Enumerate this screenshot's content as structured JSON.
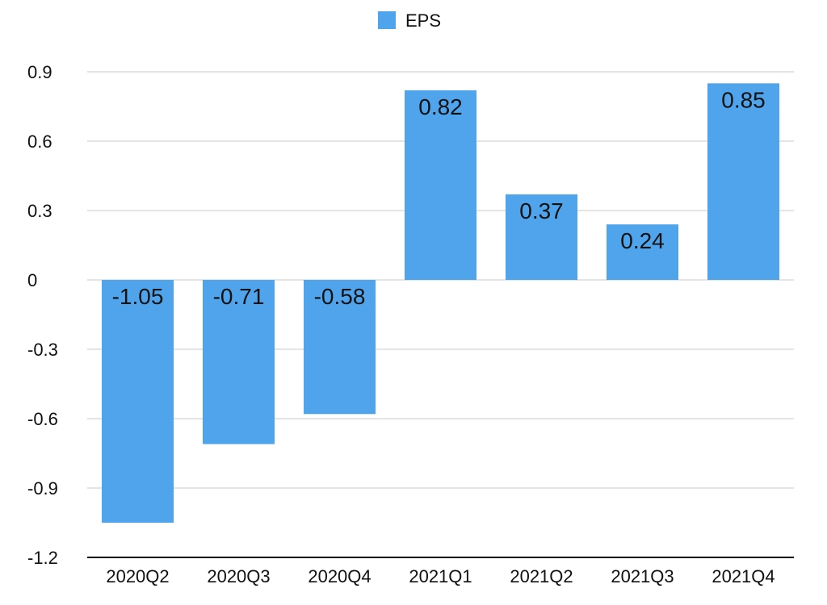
{
  "chart_data": {
    "type": "bar",
    "categories": [
      "2020Q2",
      "2020Q3",
      "2020Q4",
      "2021Q1",
      "2021Q2",
      "2021Q3",
      "2021Q4"
    ],
    "series": [
      {
        "name": "EPS",
        "values": [
          -1.05,
          -0.71,
          -0.58,
          0.82,
          0.37,
          0.24,
          0.85
        ],
        "data_labels": [
          "-1.05",
          "-0.71",
          "-0.58",
          "0.82",
          "0.37",
          "0.24",
          "0.85"
        ],
        "color": "#4fa4ec"
      }
    ],
    "title": "",
    "xlabel": "",
    "ylabel": "",
    "ylim": [
      -1.2,
      0.9
    ],
    "yticks": [
      0.9,
      0.6,
      0.3,
      0,
      -0.3,
      -0.6,
      -0.9,
      -1.2
    ],
    "ytick_labels": [
      "0.9",
      "0.6",
      "0.3",
      "0",
      "-0.3",
      "-0.6",
      "-0.9",
      "-1.2"
    ],
    "grid": true,
    "legend": {
      "position": "top-center",
      "entries": [
        "EPS"
      ]
    }
  }
}
